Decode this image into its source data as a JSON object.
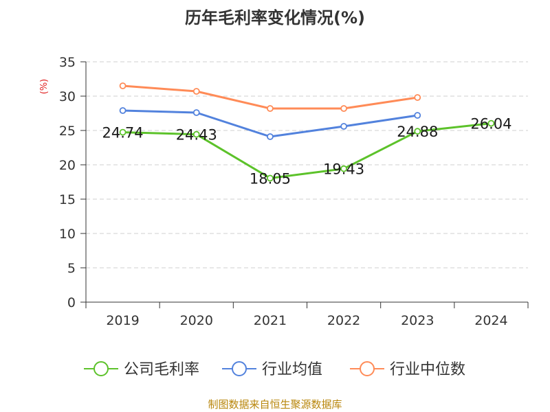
{
  "colors": {
    "company": "#5cc22a",
    "industry_avg": "#5282dd",
    "industry_median": "#ff8b57",
    "source": "#b8860b",
    "ylabel": "#e02020"
  },
  "chart_data": {
    "type": "line",
    "title": "历年毛利率变化情况(%)",
    "ylabel": "(%)",
    "xlabel": "",
    "categories": [
      "2019",
      "2020",
      "2021",
      "2022",
      "2023",
      "2024"
    ],
    "ylim": [
      0,
      35
    ],
    "yticks": [
      0,
      5,
      10,
      15,
      20,
      25,
      30,
      35
    ],
    "grid": true,
    "legend_position": "bottom",
    "series": [
      {
        "name": "公司毛利率",
        "color_key": "company",
        "values": [
          24.74,
          24.43,
          18.05,
          19.43,
          24.88,
          26.04
        ],
        "data_labels": [
          "24.74",
          "24.43",
          "18.05",
          "19.43",
          "24.88",
          "26.04"
        ]
      },
      {
        "name": "行业均值",
        "color_key": "industry_avg",
        "values": [
          27.9,
          27.6,
          24.1,
          25.6,
          27.2,
          null
        ]
      },
      {
        "name": "行业中位数",
        "color_key": "industry_median",
        "values": [
          31.5,
          30.7,
          28.2,
          28.2,
          29.8,
          null
        ]
      }
    ]
  },
  "footer": {
    "source": "制图数据来自恒生聚源数据库"
  }
}
